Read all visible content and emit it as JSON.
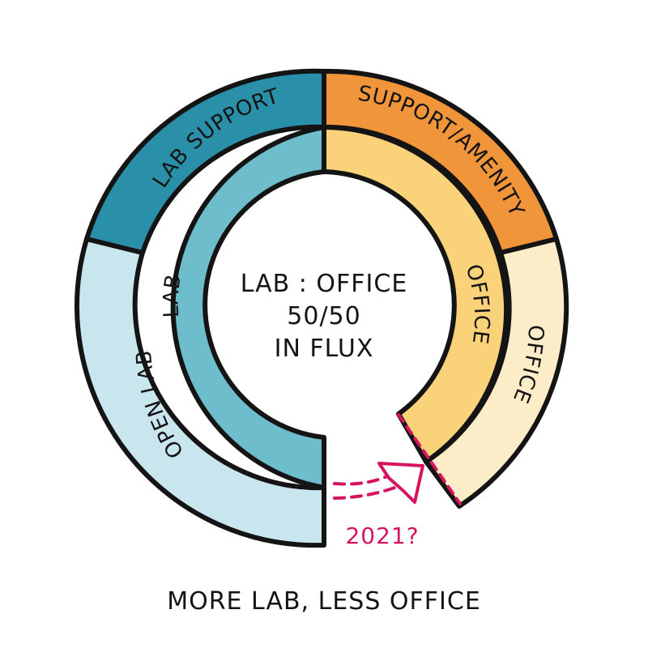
{
  "diagram": {
    "segments": [
      {
        "id": "open-lab",
        "label": "OPEN LAB",
        "color": "#c9e6ee"
      },
      {
        "id": "lab-support",
        "label": "LAB SUPPORT",
        "color": "#2a8fa8"
      },
      {
        "id": "support-amenity",
        "label": "SUPPORT/AMENITY",
        "color": "#f0953a"
      },
      {
        "id": "office-outer",
        "label": "OFFICE",
        "color": "#fcecc8"
      },
      {
        "id": "lab",
        "label": "LAB",
        "color": "#6dbdcc"
      },
      {
        "id": "office-inner",
        "label": "OFFICE",
        "color": "#f9d27a"
      }
    ],
    "center_lines": [
      "LAB : OFFICE",
      "50/50",
      "IN FLUX"
    ],
    "annotation": {
      "year": "2021?",
      "color": "#d6145f"
    },
    "caption": "MORE LAB, LESS OFFICE"
  }
}
